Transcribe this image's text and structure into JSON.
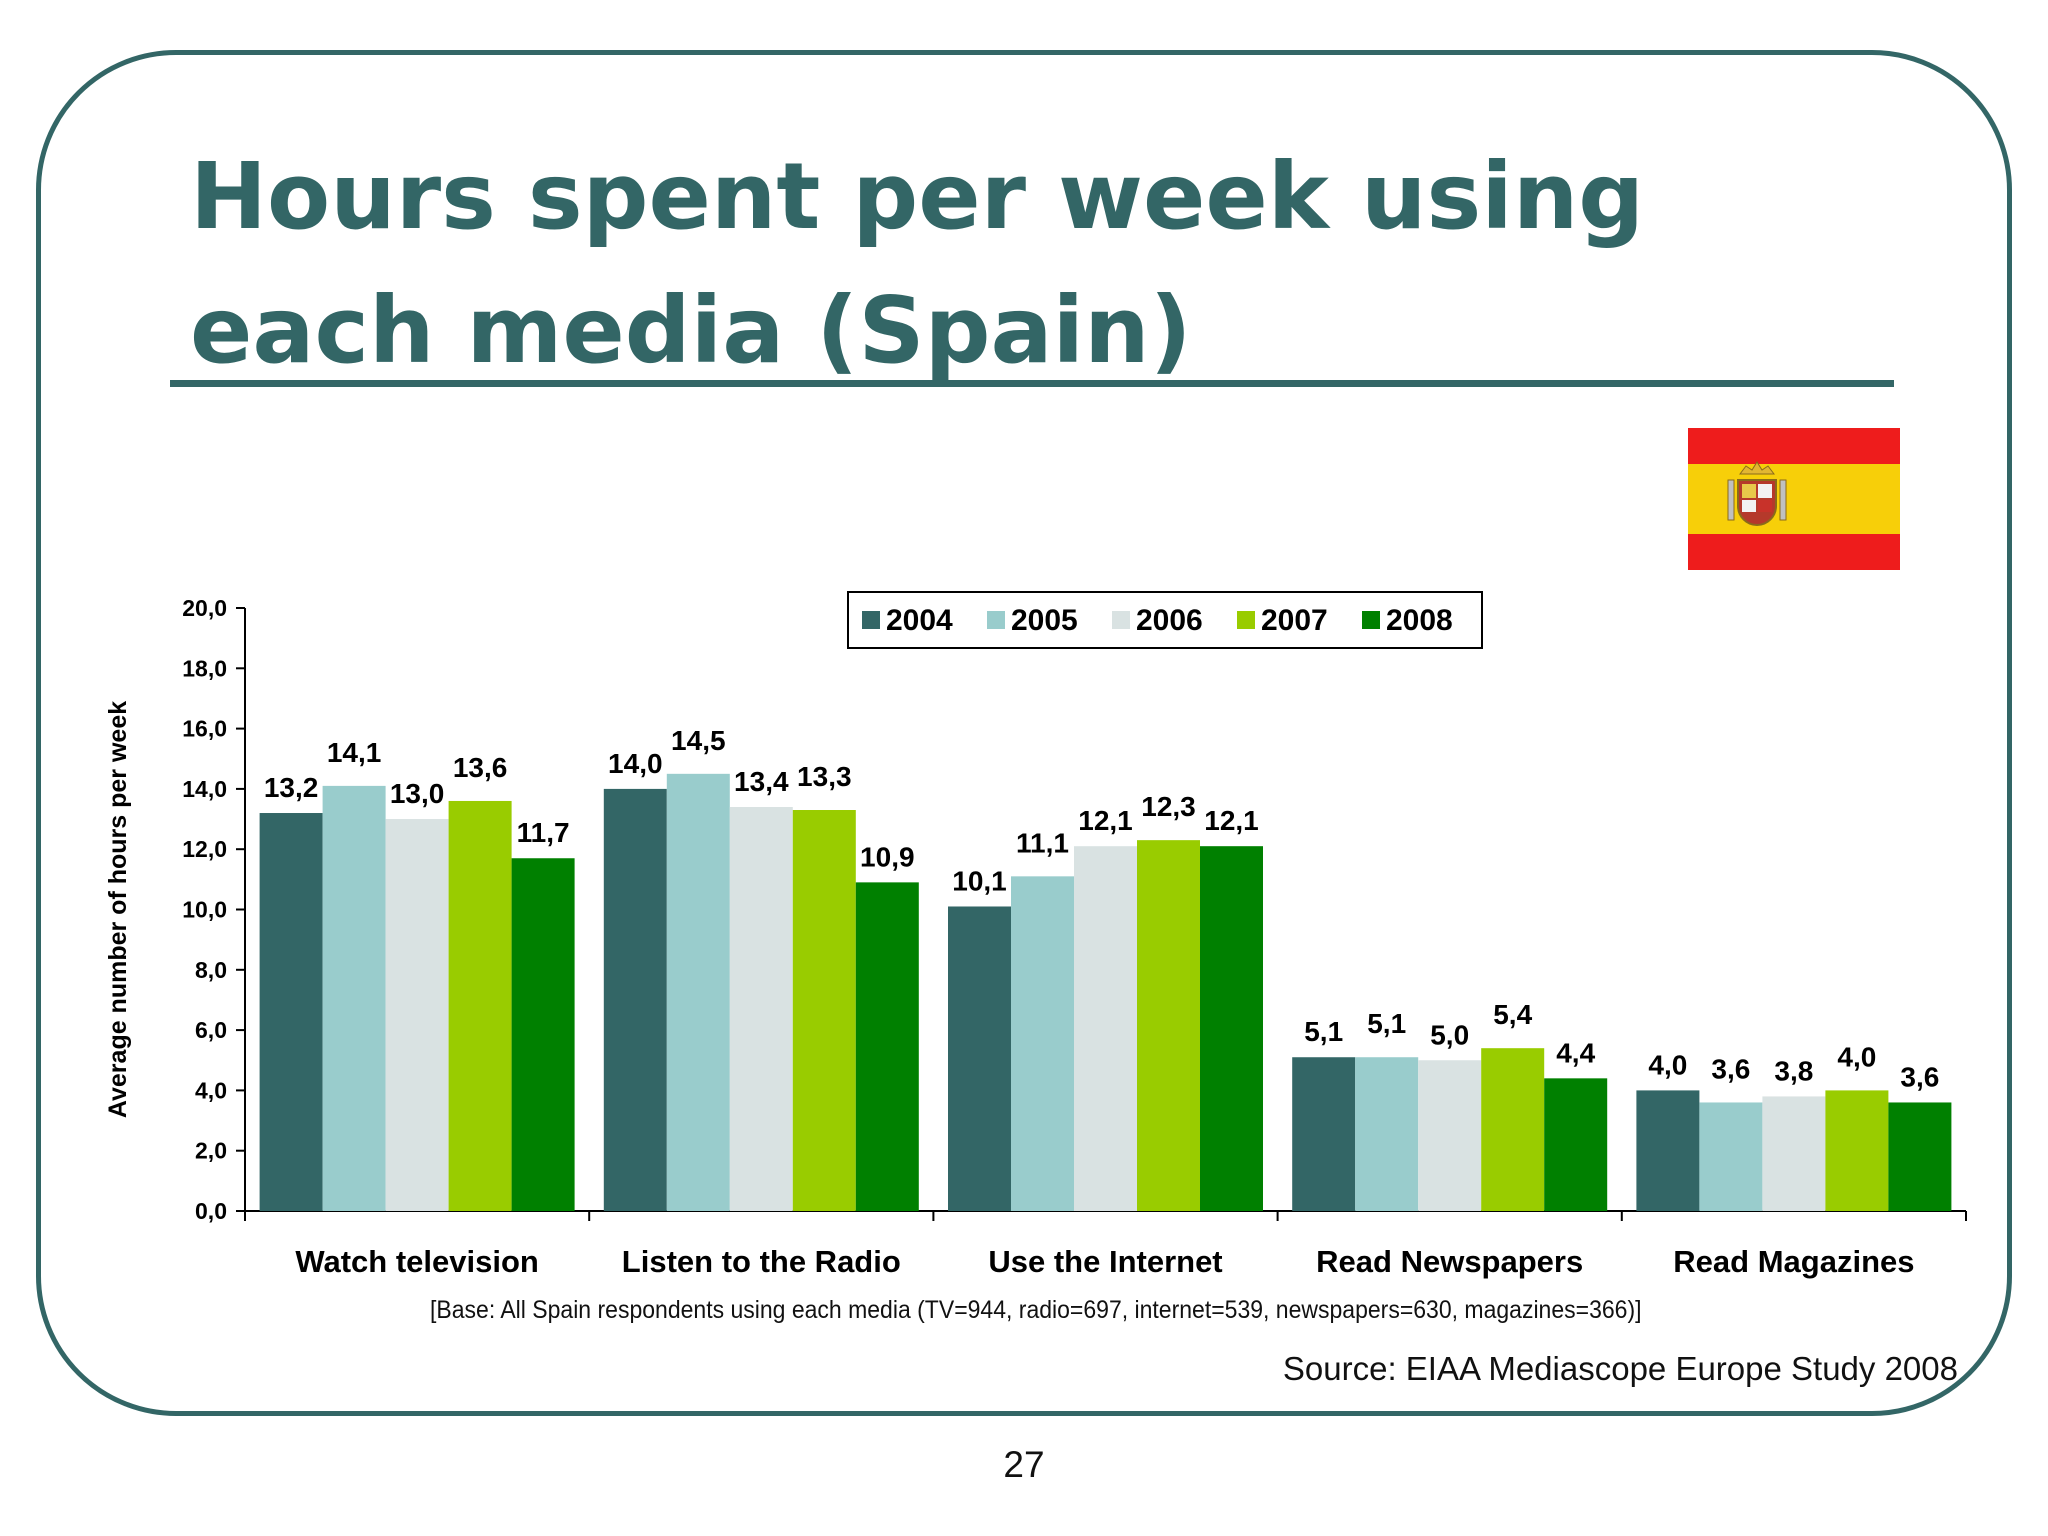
{
  "slide": {
    "title_line1": "Hours spent per week using",
    "title_line2": "each media (Spain)",
    "base_note": "[Base: All Spain respondents using each media (TV=944, radio=697, internet=539, newspapers=630, magazines=366)]",
    "source": "Source: EIAA Mediascope Europe Study 2008",
    "page_number": "27",
    "theme_color": "#336666"
  },
  "flag": {
    "icon": "spain-flag-icon",
    "colors": {
      "red": "#ee1c1c",
      "yellow": "#f7cf09",
      "crest": "#b5392b"
    }
  },
  "chart_data": {
    "type": "bar",
    "title": "",
    "xlabel": "",
    "ylabel": "Average number of hours per week",
    "ylim": [
      0,
      20
    ],
    "yticks": [
      "0,0",
      "2,0",
      "4,0",
      "6,0",
      "8,0",
      "10,0",
      "12,0",
      "14,0",
      "16,0",
      "18,0",
      "20,0"
    ],
    "grid": false,
    "legend_position": "top",
    "categories": [
      "Watch television",
      "Listen to the Radio",
      "Use the Internet",
      "Read Newspapers",
      "Read Magazines"
    ],
    "series": [
      {
        "name": "2004",
        "color": "#336666",
        "values": [
          13.2,
          14.0,
          10.1,
          5.1,
          4.0
        ],
        "labels": [
          "13,2",
          "14,0",
          "10,1",
          "5,1",
          "4,0"
        ]
      },
      {
        "name": "2005",
        "color": "#99cccc",
        "values": [
          14.1,
          14.5,
          11.1,
          5.1,
          3.6
        ],
        "labels": [
          "14,1",
          "14,5",
          "11,1",
          "5,1",
          "3,6"
        ]
      },
      {
        "name": "2006",
        "color": "#d9e2e2",
        "values": [
          13.0,
          13.4,
          12.1,
          5.0,
          3.8
        ],
        "labels": [
          "13,0",
          "13,4",
          "12,1",
          "5,0",
          "3,8"
        ]
      },
      {
        "name": "2007",
        "color": "#99cc00",
        "values": [
          13.6,
          13.3,
          12.3,
          5.4,
          4.0
        ],
        "labels": [
          "13,6",
          "13,3",
          "12,3",
          "5,4",
          "4,0"
        ]
      },
      {
        "name": "2008",
        "color": "#008000",
        "values": [
          11.7,
          10.9,
          12.1,
          4.4,
          3.6
        ],
        "labels": [
          "11,7",
          "10,9",
          "12,1",
          "4,4",
          "3,6"
        ]
      }
    ]
  }
}
